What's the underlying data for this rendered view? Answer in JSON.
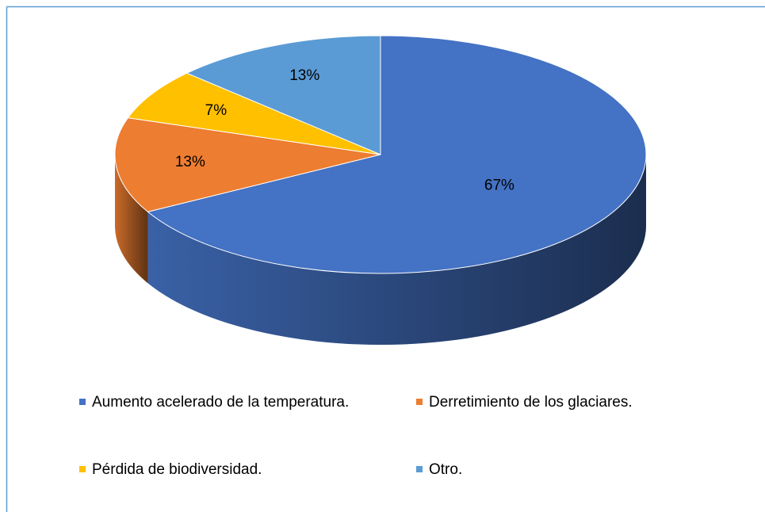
{
  "chart_data": {
    "type": "pie",
    "categories": [
      "Aumento acelerado de la temperatura.",
      "Derretimiento de los glaciares.",
      "Pérdida de biodiversidad.",
      "Otro."
    ],
    "values": [
      67,
      13,
      7,
      13
    ],
    "value_labels": [
      "67%",
      "13%",
      "7%",
      "13%"
    ],
    "colors": [
      "#4472c4",
      "#ed7d31",
      "#ffc000",
      "#5b9bd5"
    ],
    "legend": "bottom"
  }
}
